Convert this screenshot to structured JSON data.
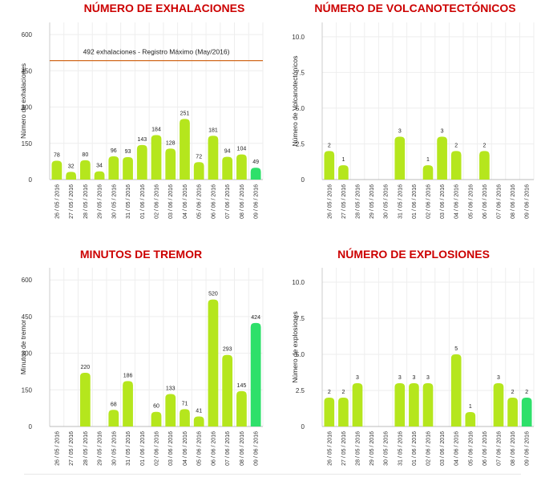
{
  "chart_data": [
    {
      "type": "bar",
      "title": "NÚMERO DE EXHALACIONES",
      "ylabel": "Número de exhalaciones",
      "xlabel": "",
      "ylim": [
        0,
        650
      ],
      "yticks": [
        0,
        150,
        300,
        450,
        600
      ],
      "ytick_labels": [
        "0",
        "150",
        "300",
        "450",
        "600"
      ],
      "categories": [
        "26 / 05 / 2016",
        "27 / 05 / 2016",
        "28 / 05 / 2016",
        "29 / 05 / 2016",
        "30 / 05 / 2016",
        "31 / 05 / 2016",
        "01 / 06 / 2016",
        "02 / 06 / 2016",
        "03 / 06 / 2016",
        "04 / 06 / 2016",
        "05 / 06 / 2016",
        "06 / 06 / 2016",
        "07 / 06 / 2016",
        "08 / 06 / 2016",
        "09 / 06 / 2016"
      ],
      "values": [
        78,
        32,
        80,
        34,
        96,
        93,
        143,
        184,
        128,
        251,
        72,
        181,
        94,
        104,
        49
      ],
      "value_labels": [
        "78",
        "32",
        "80",
        "34",
        "96",
        "93",
        "143",
        "184",
        "128",
        "251",
        "72",
        "181",
        "94",
        "104",
        "49"
      ],
      "reference_line": {
        "value": 492,
        "label": "492 exhalaciones -  Registro Máximo (May/2016)",
        "color": "#d2691e"
      },
      "bar_color": "#b5e61d",
      "last_bar_color": "#2ee06a"
    },
    {
      "type": "bar",
      "title": "NÚMERO DE VOLCANOTECTÓNICOS",
      "ylabel": "Número de Volcanotectónicos",
      "xlabel": "",
      "ylim": [
        0,
        11
      ],
      "yticks": [
        0,
        2.5,
        5,
        7.5,
        10
      ],
      "ytick_labels": [
        "0",
        "2.5",
        "5.0",
        "7.5",
        "10.0"
      ],
      "categories": [
        "26 / 05 / 2016",
        "27 / 05 / 2016",
        "28 / 05 / 2016",
        "29 / 05 / 2016",
        "30 / 05 / 2016",
        "31 / 05 / 2016",
        "01 / 06 / 2016",
        "02 / 06 / 2016",
        "03 / 06 / 2016",
        "04 / 06 / 2016",
        "05 / 06 / 2016",
        "06 / 06 / 2016",
        "07 / 06 / 2016",
        "08 / 06 / 2016",
        "09 / 06 / 2016"
      ],
      "values": [
        2,
        1,
        0,
        0,
        0,
        3,
        0,
        1,
        3,
        2,
        0,
        2,
        0,
        0,
        0
      ],
      "value_labels": [
        "2",
        "1",
        "",
        "",
        "",
        "3",
        "",
        "1",
        "3",
        "2",
        "",
        "2",
        "",
        "",
        ""
      ],
      "bar_color": "#b5e61d",
      "last_bar_color": "#2ee06a"
    },
    {
      "type": "bar",
      "title": "MINUTOS DE TREMOR",
      "ylabel": "Minutos de tremor",
      "xlabel": "",
      "ylim": [
        0,
        650
      ],
      "yticks": [
        0,
        150,
        300,
        450,
        600
      ],
      "ytick_labels": [
        "0",
        "150",
        "300",
        "450",
        "600"
      ],
      "categories": [
        "26 / 05 / 2016",
        "27 / 05 / 2016",
        "28 / 05 / 2016",
        "29 / 05 / 2016",
        "30 / 05 / 2016",
        "31 / 05 / 2016",
        "01 / 06 / 2016",
        "02 / 06 / 2016",
        "03 / 06 / 2016",
        "04 / 06 / 2016",
        "05 / 06 / 2016",
        "06 / 06 / 2016",
        "07 / 06 / 2016",
        "08 / 06 / 2016",
        "09 / 06 / 2016"
      ],
      "values": [
        0,
        0,
        220,
        0,
        68,
        186,
        0,
        60,
        133,
        71,
        41,
        520,
        293,
        145,
        424
      ],
      "value_labels": [
        "",
        "",
        "220",
        "",
        "68",
        "186",
        "",
        "60",
        "133",
        "71",
        "41",
        "520",
        "293",
        "145",
        "424"
      ],
      "bar_color": "#b5e61d",
      "last_bar_color": "#2ee06a"
    },
    {
      "type": "bar",
      "title": "NÚMERO DE EXPLOSIONES",
      "ylabel": "Número de explosiones",
      "xlabel": "",
      "ylim": [
        0,
        11
      ],
      "yticks": [
        0,
        2.5,
        5,
        7.5,
        10
      ],
      "ytick_labels": [
        "0",
        "2.5",
        "5.0",
        "7.5",
        "10.0"
      ],
      "categories": [
        "26 / 05 / 2016",
        "27 / 05 / 2016",
        "28 / 05 / 2016",
        "29 / 05 / 2016",
        "30 / 05 / 2016",
        "31 / 05 / 2016",
        "01 / 06 / 2016",
        "02 / 06 / 2016",
        "03 / 06 / 2016",
        "04 / 06 / 2016",
        "05 / 06 / 2016",
        "06 / 06 / 2016",
        "07 / 06 / 2016",
        "08 / 06 / 2016",
        "09 / 06 / 2016"
      ],
      "values": [
        2,
        2,
        3,
        0,
        0,
        3,
        3,
        3,
        0,
        5,
        1,
        0,
        3,
        2,
        2
      ],
      "value_labels": [
        "2",
        "2",
        "3",
        "",
        "",
        "3",
        "3",
        "3",
        "",
        "5",
        "1",
        "",
        "3",
        "2",
        "2"
      ],
      "bar_color": "#b5e61d",
      "last_bar_color": "#2ee06a"
    }
  ]
}
